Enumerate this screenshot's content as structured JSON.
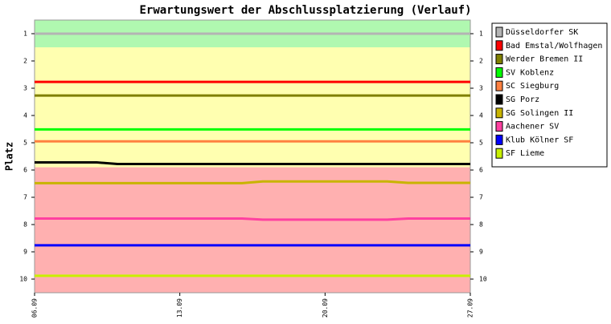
{
  "chart_data": {
    "type": "line",
    "title": "Erwartungswert der Abschlussplatzierung (Verlauf)",
    "y_label": "Platz",
    "categories": [
      "06.09",
      null,
      null,
      null,
      null,
      null,
      null,
      "13.09",
      null,
      null,
      null,
      null,
      null,
      null,
      "20.09",
      null,
      null,
      null,
      null,
      null,
      null,
      "27.09"
    ],
    "ylim": [
      0.5,
      10.5
    ],
    "y_inverted": true,
    "yticks": [
      1,
      2,
      3,
      4,
      5,
      6,
      7,
      8,
      9,
      10
    ],
    "bands": [
      {
        "from": 0.5,
        "to": 1.5,
        "color": "#b0f8b0"
      },
      {
        "from": 1.5,
        "to": 5.9,
        "color": "#ffffb0"
      },
      {
        "from": 5.9,
        "to": 10.5,
        "color": "#ffb0b0"
      }
    ],
    "series": [
      {
        "name": "Düsseldorfer SK",
        "color": "#b4b4b4",
        "values": [
          1,
          1,
          1,
          1,
          1,
          1,
          1,
          1,
          1,
          1,
          1,
          1,
          1,
          1,
          1,
          1,
          1,
          1,
          1,
          1,
          1,
          1
        ]
      },
      {
        "name": "Bad Emstal/Wolfhagen",
        "color": "#ff0000",
        "values": [
          2.77,
          2.77,
          2.77,
          2.77,
          2.77,
          2.77,
          2.77,
          2.77,
          2.77,
          2.77,
          2.77,
          2.77,
          2.77,
          2.77,
          2.77,
          2.77,
          2.77,
          2.77,
          2.77,
          2.77,
          2.77,
          2.77
        ]
      },
      {
        "name": "Werder Bremen II",
        "color": "#808000",
        "values": [
          3.27,
          3.27,
          3.27,
          3.27,
          3.27,
          3.27,
          3.27,
          3.27,
          3.27,
          3.27,
          3.27,
          3.27,
          3.27,
          3.27,
          3.27,
          3.27,
          3.27,
          3.27,
          3.27,
          3.27,
          3.27,
          3.27
        ]
      },
      {
        "name": "SV Koblenz",
        "color": "#00ff00",
        "values": [
          4.51,
          4.51,
          4.51,
          4.51,
          4.51,
          4.51,
          4.51,
          4.51,
          4.51,
          4.51,
          4.51,
          4.51,
          4.51,
          4.51,
          4.51,
          4.51,
          4.51,
          4.51,
          4.51,
          4.51,
          4.51,
          4.51
        ]
      },
      {
        "name": "SC Siegburg",
        "color": "#ff8040",
        "values": [
          4.95,
          4.95,
          4.95,
          4.95,
          4.95,
          4.95,
          4.95,
          4.95,
          4.95,
          4.95,
          4.95,
          4.95,
          4.95,
          4.95,
          4.95,
          4.95,
          4.95,
          4.95,
          4.95,
          4.95,
          4.95,
          4.95
        ]
      },
      {
        "name": "SG Porz",
        "color": "#000000",
        "values": [
          5.72,
          5.72,
          5.72,
          5.72,
          5.78,
          5.78,
          5.78,
          5.78,
          5.78,
          5.78,
          5.78,
          5.78,
          5.78,
          5.78,
          5.78,
          5.78,
          5.78,
          5.78,
          5.78,
          5.78,
          5.78,
          5.78
        ]
      },
      {
        "name": "SG Solingen II",
        "color": "#c8b400",
        "values": [
          6.48,
          6.48,
          6.48,
          6.48,
          6.48,
          6.48,
          6.48,
          6.48,
          6.48,
          6.48,
          6.48,
          6.42,
          6.42,
          6.42,
          6.42,
          6.42,
          6.42,
          6.42,
          6.47,
          6.47,
          6.47,
          6.47
        ]
      },
      {
        "name": "Aachener SV",
        "color": "#ff40a0",
        "values": [
          7.78,
          7.78,
          7.78,
          7.78,
          7.78,
          7.78,
          7.78,
          7.78,
          7.78,
          7.78,
          7.78,
          7.82,
          7.82,
          7.82,
          7.82,
          7.82,
          7.82,
          7.82,
          7.78,
          7.78,
          7.78,
          7.78
        ]
      },
      {
        "name": "Klub Kölner SF",
        "color": "#0000ff",
        "values": [
          8.76,
          8.76,
          8.76,
          8.76,
          8.76,
          8.76,
          8.76,
          8.76,
          8.76,
          8.76,
          8.76,
          8.76,
          8.76,
          8.76,
          8.76,
          8.76,
          8.76,
          8.76,
          8.76,
          8.76,
          8.76,
          8.76
        ]
      },
      {
        "name": "SF Lieme",
        "color": "#c8f000",
        "values": [
          9.88,
          9.88,
          9.88,
          9.88,
          9.88,
          9.88,
          9.88,
          9.88,
          9.88,
          9.88,
          9.88,
          9.88,
          9.88,
          9.88,
          9.88,
          9.88,
          9.88,
          9.88,
          9.88,
          9.88,
          9.88,
          9.88
        ]
      }
    ]
  }
}
